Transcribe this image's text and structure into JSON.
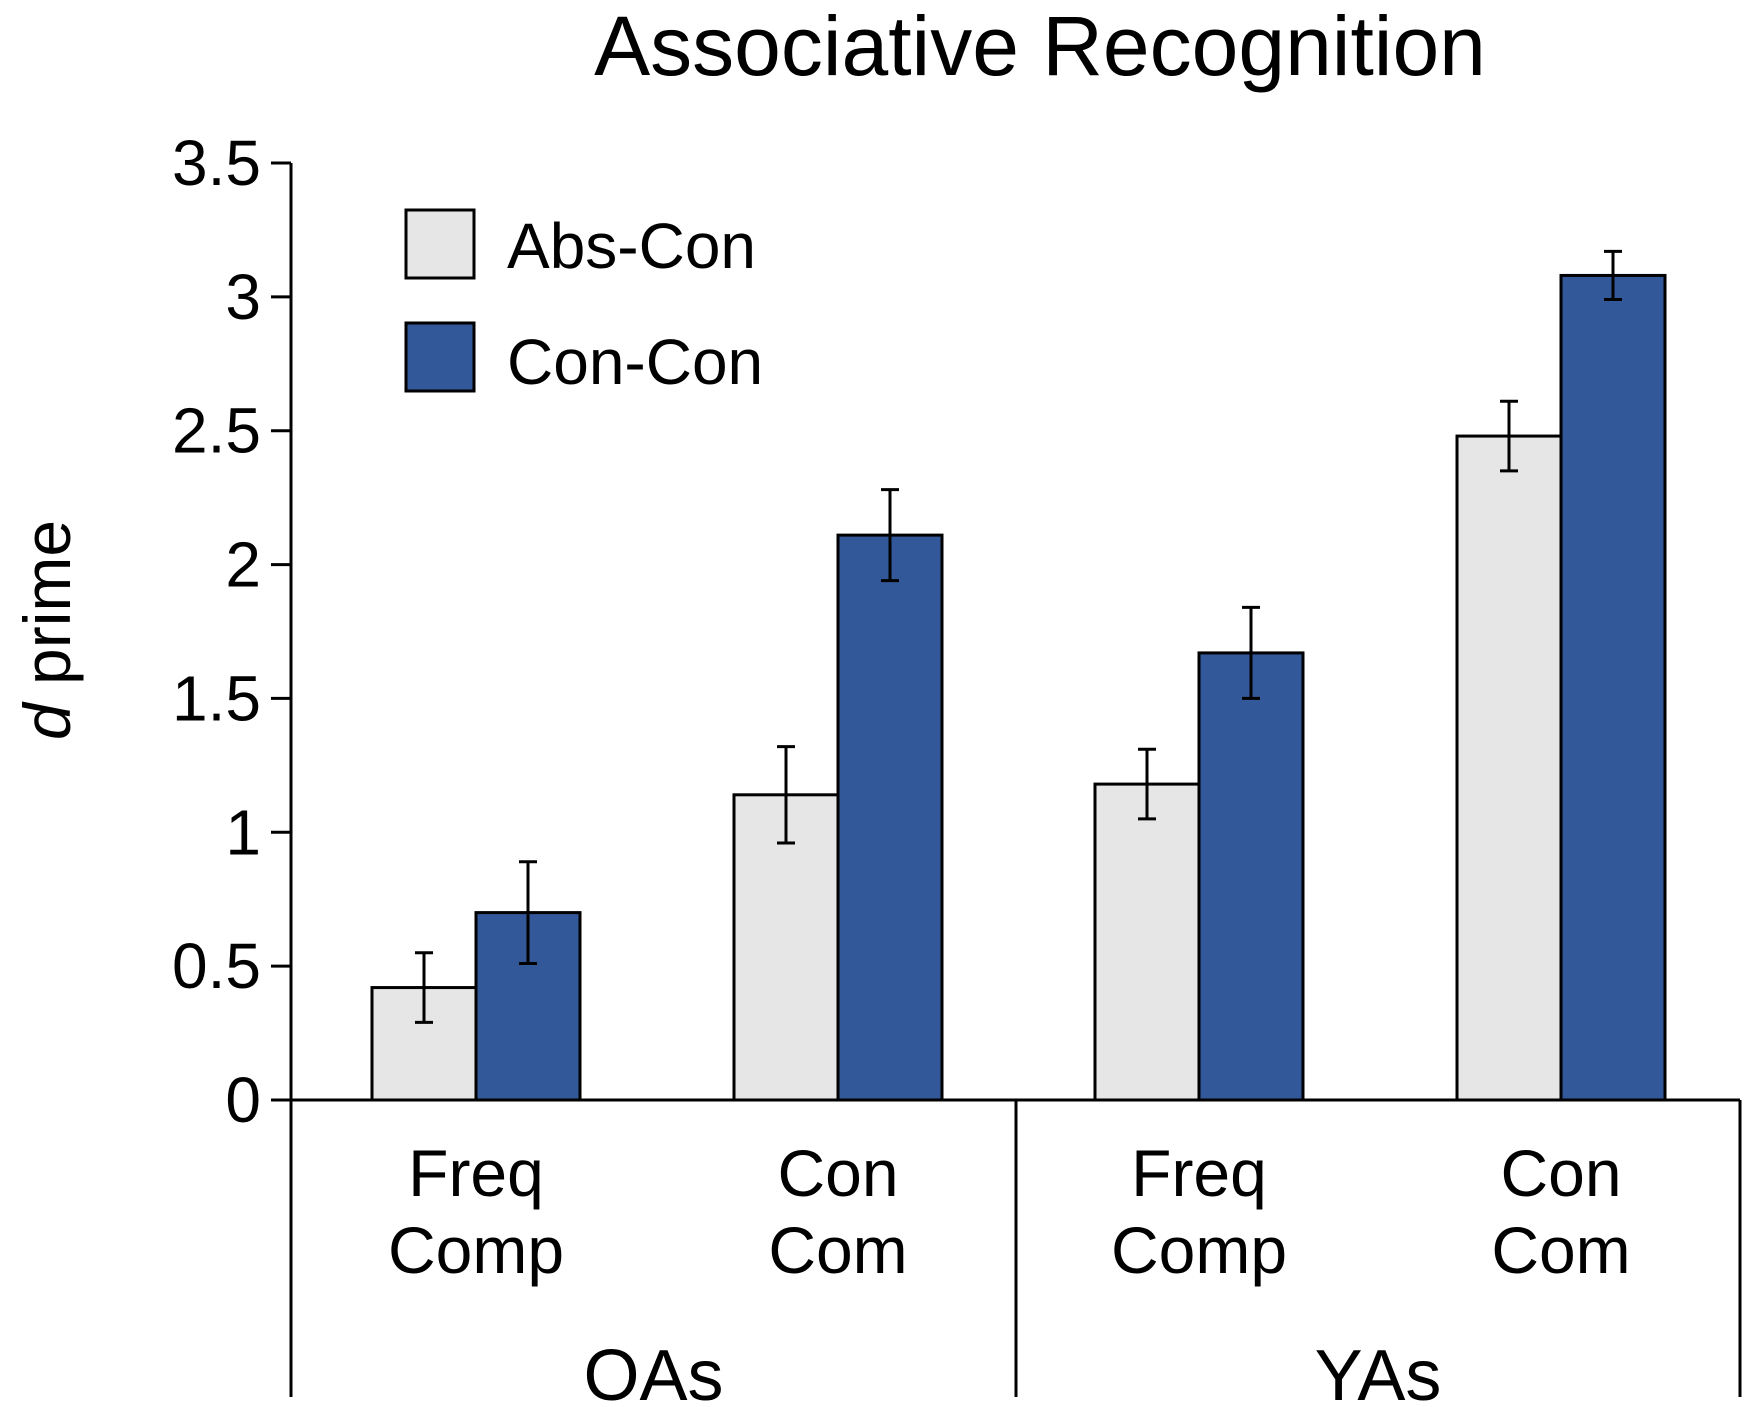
{
  "chart_data": {
    "type": "bar",
    "title": "Associative Recognition",
    "ylabel": {
      "italic": "d",
      "rest": " prime"
    },
    "xlabel": "",
    "ylim": [
      0,
      3.5
    ],
    "yticks": [
      "0",
      "0.5",
      "1",
      "1.5",
      "2",
      "2.5",
      "3",
      "3.5"
    ],
    "ytick_values": [
      0,
      0.5,
      1,
      1.5,
      2,
      2.5,
      3,
      3.5
    ],
    "groups": [
      {
        "name": "OAs",
        "categories": [
          [
            "Freq",
            "Comp"
          ],
          [
            "Con",
            "Com"
          ]
        ]
      },
      {
        "name": "YAs",
        "categories": [
          [
            "Freq",
            "Comp"
          ],
          [
            "Con",
            "Com"
          ]
        ]
      }
    ],
    "series": [
      {
        "name": "Abs-Con",
        "color": "#e6e6e6",
        "values": [
          0.42,
          1.14,
          1.18,
          2.48
        ],
        "errors": [
          0.13,
          0.18,
          0.13,
          0.13
        ]
      },
      {
        "name": "Con-Con",
        "color": "#335899",
        "values": [
          0.7,
          2.11,
          1.67,
          3.08
        ],
        "errors": [
          0.19,
          0.17,
          0.17,
          0.09
        ]
      }
    ],
    "legend_position": "top-left",
    "grid": false
  }
}
